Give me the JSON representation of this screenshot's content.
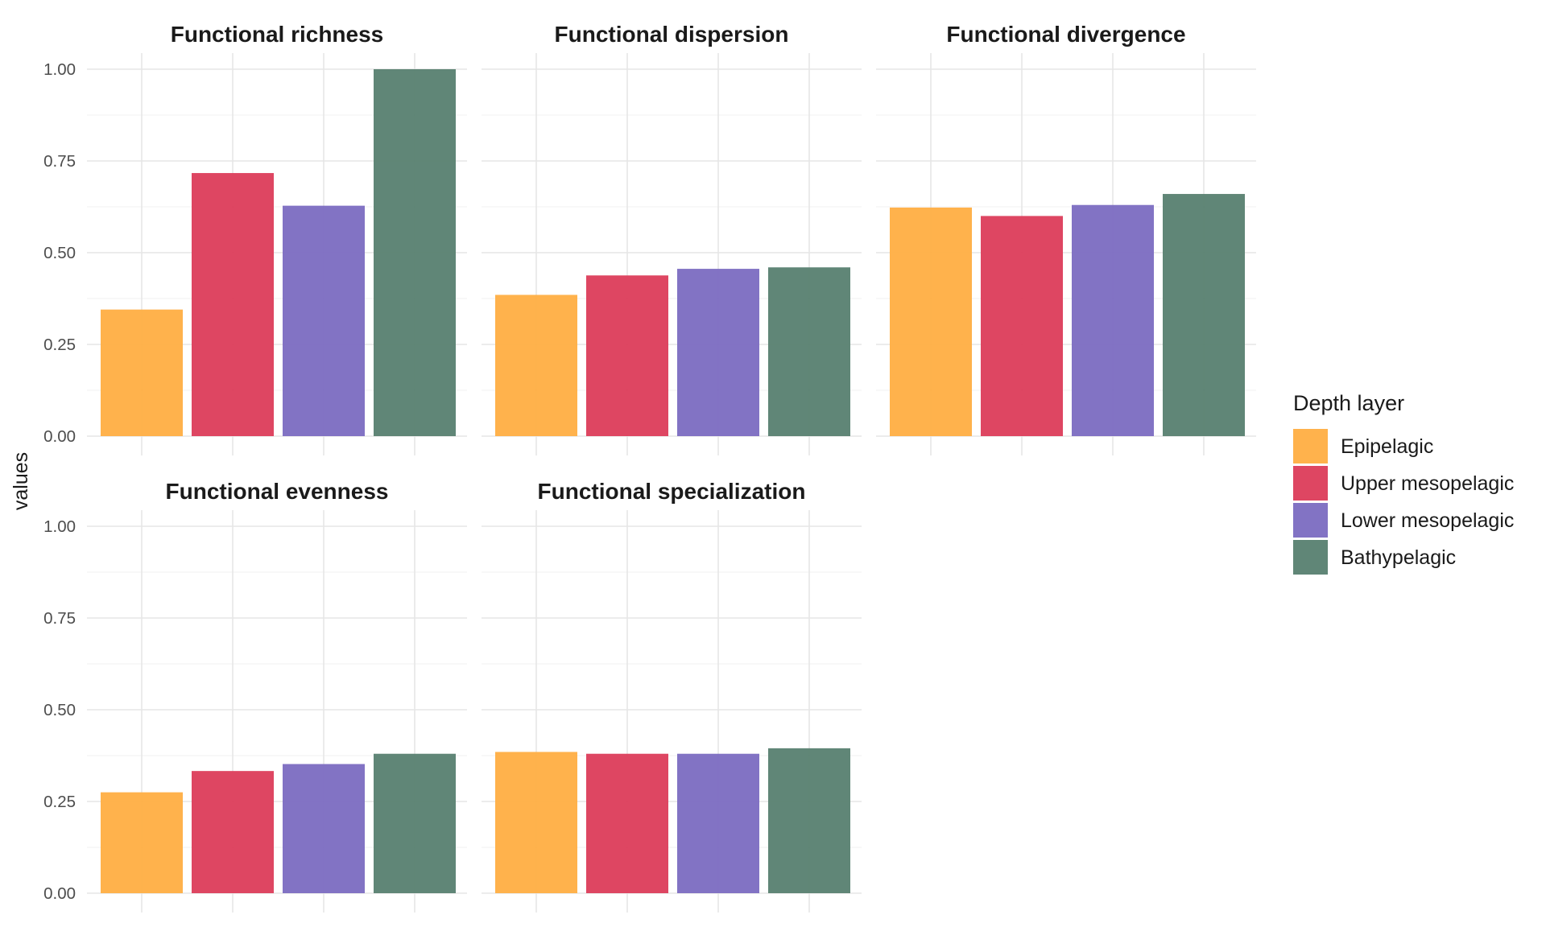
{
  "chart_data": {
    "type": "bar",
    "ylabel": "values",
    "ylim": [
      0,
      1
    ],
    "yticks": [
      "0.00",
      "0.25",
      "0.50",
      "0.75",
      "1.00"
    ],
    "grid": true,
    "legend_position": "right",
    "legend": {
      "title": "Depth layer",
      "entries": [
        {
          "name": "Epipelagic",
          "color": "#FFAE42"
        },
        {
          "name": "Upper mesopelagic",
          "color": "#DC3C5A"
        },
        {
          "name": "Lower mesopelagic",
          "color": "#7B6BC1"
        },
        {
          "name": "Bathypelagic",
          "color": "#577F70"
        }
      ]
    },
    "categories": [
      "Epipelagic",
      "Upper mesopelagic",
      "Lower mesopelagic",
      "Bathypelagic"
    ],
    "facets": [
      {
        "title": "Functional richness",
        "values": [
          0.345,
          0.717,
          0.628,
          1.0
        ]
      },
      {
        "title": "Functional dispersion",
        "values": [
          0.385,
          0.438,
          0.456,
          0.46
        ]
      },
      {
        "title": "Functional divergence",
        "values": [
          0.623,
          0.6,
          0.63,
          0.66
        ]
      },
      {
        "title": "Functional evenness",
        "values": [
          0.275,
          0.333,
          0.352,
          0.38
        ]
      },
      {
        "title": "Functional specialization",
        "values": [
          0.385,
          0.38,
          0.38,
          0.395
        ]
      }
    ]
  }
}
